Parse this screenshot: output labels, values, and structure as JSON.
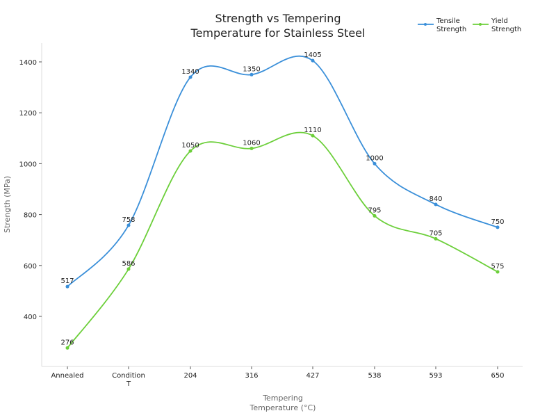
{
  "chart_data": {
    "type": "line",
    "title": "Strength vs Tempering\nTemperature for Stainless Steel",
    "xlabel": "Tempering\nTemperature (°C)",
    "ylabel": "Strength (MPa)",
    "categories": [
      "Annealed",
      "Condition\nT",
      "204",
      "316",
      "427",
      "538",
      "593",
      "650"
    ],
    "ylim": [
      203,
      1474
    ],
    "yticks": [
      400,
      600,
      800,
      1000,
      1200,
      1400
    ],
    "grid": false,
    "legend_position": "top-right",
    "series": [
      {
        "name": "Tensile\nStrength",
        "color": "#3a8fd9",
        "values": [
          517,
          758,
          1340,
          1350,
          1405,
          1000,
          840,
          750
        ]
      },
      {
        "name": "Yield\nStrength",
        "color": "#6ccf3a",
        "values": [
          276,
          586,
          1050,
          1060,
          1110,
          795,
          705,
          575
        ]
      }
    ]
  }
}
